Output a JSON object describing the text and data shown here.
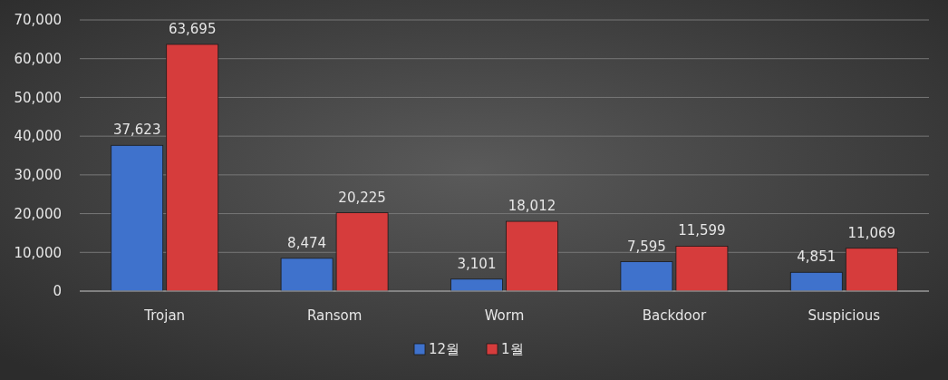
{
  "chart_data": {
    "type": "bar",
    "categories": [
      "Trojan",
      "Ransom",
      "Worm",
      "Backdoor",
      "Suspicious"
    ],
    "series": [
      {
        "name": "12월",
        "color": "#3f72cc",
        "values": [
          37623,
          8474,
          3101,
          7595,
          4851
        ],
        "value_labels": [
          "37,623",
          "8,474",
          "3,101",
          "7,595",
          "4,851"
        ]
      },
      {
        "name": "1월",
        "color": "#d63c3c",
        "values": [
          63695,
          20225,
          18012,
          11599,
          11069
        ],
        "value_labels": [
          "63,695",
          "20,225",
          "18,012",
          "11,599",
          "11,069"
        ]
      }
    ],
    "ylim": [
      0,
      70000
    ],
    "yticks": [
      {
        "value": 0,
        "label": "0"
      },
      {
        "value": 10000,
        "label": "10,000"
      },
      {
        "value": 20000,
        "label": "20,000"
      },
      {
        "value": 30000,
        "label": "30,000"
      },
      {
        "value": 40000,
        "label": "40,000"
      },
      {
        "value": 50000,
        "label": "50,000"
      },
      {
        "value": 60000,
        "label": "60,000"
      },
      {
        "value": 70000,
        "label": "70,000"
      }
    ],
    "grid": "y",
    "legend": "bottom"
  }
}
